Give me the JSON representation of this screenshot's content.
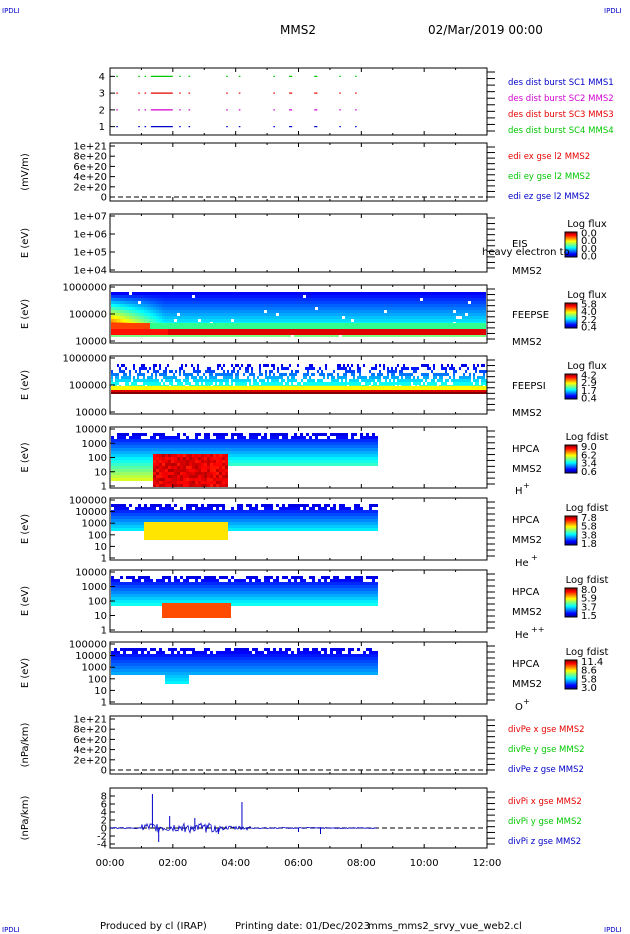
{
  "header": {
    "corner_left": "IPDLI",
    "corner_right": "IPDLI",
    "spacecraft": "MMS2",
    "date": "02/Mar/2019 00:00"
  },
  "footer": {
    "produced_by": "Produced by cl (IRAP)",
    "printing_date": "Printing date: 01/Dec/2023",
    "script_name": "mms_mms2_srvy_vue_web2.cl",
    "corner_left": "IPDLI",
    "corner_right": "IPDLI"
  },
  "colors": {
    "red": "#e60000",
    "green": "#00c800",
    "blue": "#0000c8",
    "magenta": "#d000d0",
    "frame": "#000000"
  },
  "chart_data": [
    {
      "type": "timeline",
      "id": "burst",
      "title": "",
      "ylabel": "",
      "ylim": [
        0.5,
        4.5
      ],
      "yticks": [
        1,
        2,
        3,
        4
      ],
      "series": [
        {
          "name": "des dist burst SC1 MMS1",
          "color": "#0000c8",
          "level": 1
        },
        {
          "name": "des dist burst SC2 MMS2",
          "color": "#d000d0",
          "level": 2
        },
        {
          "name": "des dist burst SC3 MMS3",
          "color": "#e60000",
          "level": 3
        },
        {
          "name": "des dist burst SC4 MMS4",
          "color": "#00c800",
          "level": 4
        }
      ],
      "intervals_hours": [
        [
          0.2,
          0.25
        ],
        [
          0.9,
          0.95
        ],
        [
          1.1,
          1.15
        ],
        [
          1.3,
          2.0
        ],
        [
          2.2,
          2.25
        ],
        [
          2.5,
          2.55
        ],
        [
          3.7,
          3.75
        ],
        [
          4.1,
          4.15
        ],
        [
          5.2,
          5.25
        ],
        [
          5.7,
          5.8
        ],
        [
          6.5,
          6.6
        ],
        [
          7.3,
          7.35
        ],
        [
          7.8,
          7.85
        ]
      ]
    },
    {
      "type": "line",
      "id": "edi",
      "ylabel": "(mV/m)",
      "ylim": [
        0,
        1e+21
      ],
      "yticks": [
        "0",
        "2e+20",
        "4e+20",
        "6e+20",
        "8e+20",
        "1e+21"
      ],
      "series": [
        {
          "name": "edi ex gse l2 MMS2",
          "color": "#e60000"
        },
        {
          "name": "edi ey gse l2 MMS2",
          "color": "#00c800"
        },
        {
          "name": "edi ez gse l2 MMS2",
          "color": "#0000c8"
        }
      ]
    },
    {
      "type": "heatmap",
      "id": "eis",
      "ylabel": "E (eV)",
      "yscale": "log",
      "yticks": [
        "1e+04",
        "1e+05",
        "1e+06",
        "1e+07"
      ],
      "instrument": "EIS",
      "sublabel": "MMS2",
      "overlay_text": "heavy electron to",
      "colorbar": {
        "title": "Log flux",
        "ticks": [
          "0.0",
          "0.0",
          "0.0",
          "0.0"
        ]
      }
    },
    {
      "type": "heatmap",
      "id": "feepse",
      "ylabel": "E (eV)",
      "yscale": "log",
      "yticks": [
        "10000",
        "100000",
        "1000000"
      ],
      "instrument": "FEEPSE",
      "sublabel": "MMS2",
      "colorbar": {
        "title": "Log flux",
        "ticks": [
          "5.8",
          "4.0",
          "2.2",
          "0.4"
        ]
      }
    },
    {
      "type": "heatmap",
      "id": "feepsi",
      "ylabel": "E (eV)",
      "yscale": "log",
      "yticks": [
        "10000",
        "100000",
        "1000000"
      ],
      "instrument": "FEEPSI",
      "sublabel": "MMS2",
      "colorbar": {
        "title": "Log flux",
        "ticks": [
          "4.2",
          "2.9",
          "1.7",
          "0.4"
        ]
      }
    },
    {
      "type": "heatmap",
      "id": "hpca_h",
      "ylabel": "E (eV)",
      "yscale": "log",
      "yticks": [
        "1",
        "10",
        "100",
        "1000",
        "10000"
      ],
      "instrument": "HPCA",
      "sublabel": "MMS2",
      "species": "H",
      "species_sup": "+",
      "colorbar": {
        "title": "Log fdist",
        "ticks": [
          "9.0",
          "6.2",
          "3.4",
          "0.6"
        ]
      }
    },
    {
      "type": "heatmap",
      "id": "hpca_he",
      "ylabel": "E (eV)",
      "yscale": "log",
      "yticks": [
        "1",
        "10",
        "100",
        "1000",
        "10000",
        "100000"
      ],
      "instrument": "HPCA",
      "sublabel": "MMS2",
      "species": "He",
      "species_sup": "+",
      "colorbar": {
        "title": "Log fdist",
        "ticks": [
          "7.8",
          "5.8",
          "3.8",
          "1.8"
        ]
      }
    },
    {
      "type": "heatmap",
      "id": "hpca_hepp",
      "ylabel": "E (eV)",
      "yscale": "log",
      "yticks": [
        "1",
        "10",
        "100",
        "1000",
        "10000"
      ],
      "instrument": "HPCA",
      "sublabel": "MMS2",
      "species": "He",
      "species_sup": "++",
      "colorbar": {
        "title": "Log fdist",
        "ticks": [
          "8.0",
          "5.9",
          "3.7",
          "1.5"
        ]
      }
    },
    {
      "type": "heatmap",
      "id": "hpca_o",
      "ylabel": "E (eV)",
      "yscale": "log",
      "yticks": [
        "1",
        "10",
        "100",
        "1000",
        "10000",
        "100000"
      ],
      "instrument": "HPCA",
      "sublabel": "MMS2",
      "species": "O",
      "species_sup": "+",
      "colorbar": {
        "title": "Log fdist",
        "ticks": [
          "11.4",
          "8.6",
          "5.8",
          "3.0"
        ]
      }
    },
    {
      "type": "line",
      "id": "divpe",
      "ylabel": "(nPa/km)",
      "ylim": [
        0,
        1e+21
      ],
      "yticks": [
        "0",
        "2e+20",
        "4e+20",
        "6e+20",
        "8e+20",
        "1e+21"
      ],
      "series": [
        {
          "name": "divPe x gse MMS2",
          "color": "#e60000"
        },
        {
          "name": "divPe y gse MMS2",
          "color": "#00c800"
        },
        {
          "name": "divPe z gse MMS2",
          "color": "#0000c8"
        }
      ]
    },
    {
      "type": "line",
      "id": "divpi",
      "ylabel": "(nPa/km)",
      "ylim": [
        -4,
        9
      ],
      "yticks": [
        "-4",
        "-2",
        "0",
        "2",
        "4",
        "6",
        "8"
      ],
      "series": [
        {
          "name": "divPi x gse MMS2",
          "color": "#e60000"
        },
        {
          "name": "divPi y gse MMS2",
          "color": "#00c800"
        },
        {
          "name": "divPi z gse MMS2",
          "color": "#0000c8"
        }
      ],
      "spikes_hours": [
        [
          1.35,
          8.5
        ],
        [
          1.55,
          -3.5
        ],
        [
          1.9,
          3.0
        ],
        [
          2.7,
          2.5
        ],
        [
          3.45,
          -1.5
        ],
        [
          4.2,
          6.5
        ],
        [
          6.0,
          -1.0
        ],
        [
          6.7,
          -1.5
        ]
      ]
    }
  ],
  "xaxis": {
    "range_hours": [
      0,
      12
    ],
    "tick_labels": [
      "00:00",
      "02:00",
      "04:00",
      "06:00",
      "08:00",
      "10:00",
      "12:00"
    ]
  }
}
